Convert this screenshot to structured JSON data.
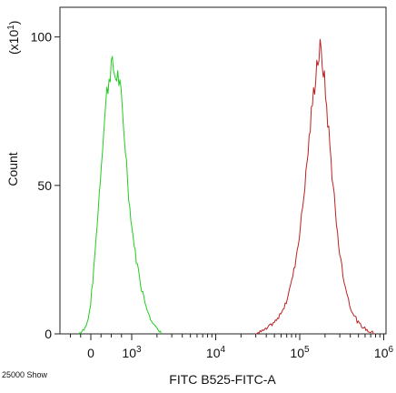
{
  "chart_data": {
    "type": "line",
    "title": "",
    "xlabel": "FITC B525-FITC-A",
    "ylabel": "Count",
    "y_multiplier_label": "(x10",
    "y_multiplier_exp": "1",
    "y_multiplier_close": ")",
    "footnote": "25000 Show",
    "x_scale": "biexponential (log above 10^3)",
    "ylim": [
      0,
      1100
    ],
    "y_ticks": [
      {
        "value": 0,
        "label": "0"
      },
      {
        "value": 500,
        "label": "50"
      },
      {
        "value": 1000,
        "label": "100"
      }
    ],
    "x_ticks": [
      {
        "value": 0,
        "base": "0",
        "exp": ""
      },
      {
        "value": 1000,
        "base": "10",
        "exp": "3"
      },
      {
        "value": 10000,
        "base": "10",
        "exp": "4"
      },
      {
        "value": 100000,
        "base": "10",
        "exp": "5"
      },
      {
        "value": 1000000,
        "base": "10",
        "exp": "6"
      }
    ],
    "grid": false,
    "series": [
      {
        "color": "#22cc22",
        "x": [
          -300,
          -150,
          -50,
          0,
          50,
          100,
          150,
          200,
          250,
          300,
          350,
          400,
          450,
          500,
          550,
          600,
          650,
          700,
          750,
          800,
          850,
          900,
          950,
          1000,
          1150,
          1300,
          1500,
          1700,
          2000,
          2300
        ],
        "y": [
          0,
          15,
          60,
          110,
          180,
          270,
          360,
          460,
          560,
          660,
          750,
          820,
          870,
          905,
          895,
          860,
          880,
          840,
          780,
          700,
          620,
          520,
          430,
          360,
          240,
          160,
          90,
          50,
          15,
          0
        ]
      },
      {
        "color": "#bb2222",
        "x": [
          30000,
          40000,
          55000,
          70000,
          85000,
          100000,
          115000,
          130000,
          145000,
          160000,
          175000,
          190000,
          210000,
          240000,
          280000,
          330000,
          400000,
          500000,
          650000,
          800000
        ],
        "y": [
          0,
          15,
          50,
          110,
          210,
          340,
          500,
          660,
          800,
          910,
          955,
          900,
          760,
          560,
          340,
          190,
          90,
          35,
          10,
          0
        ]
      }
    ]
  }
}
